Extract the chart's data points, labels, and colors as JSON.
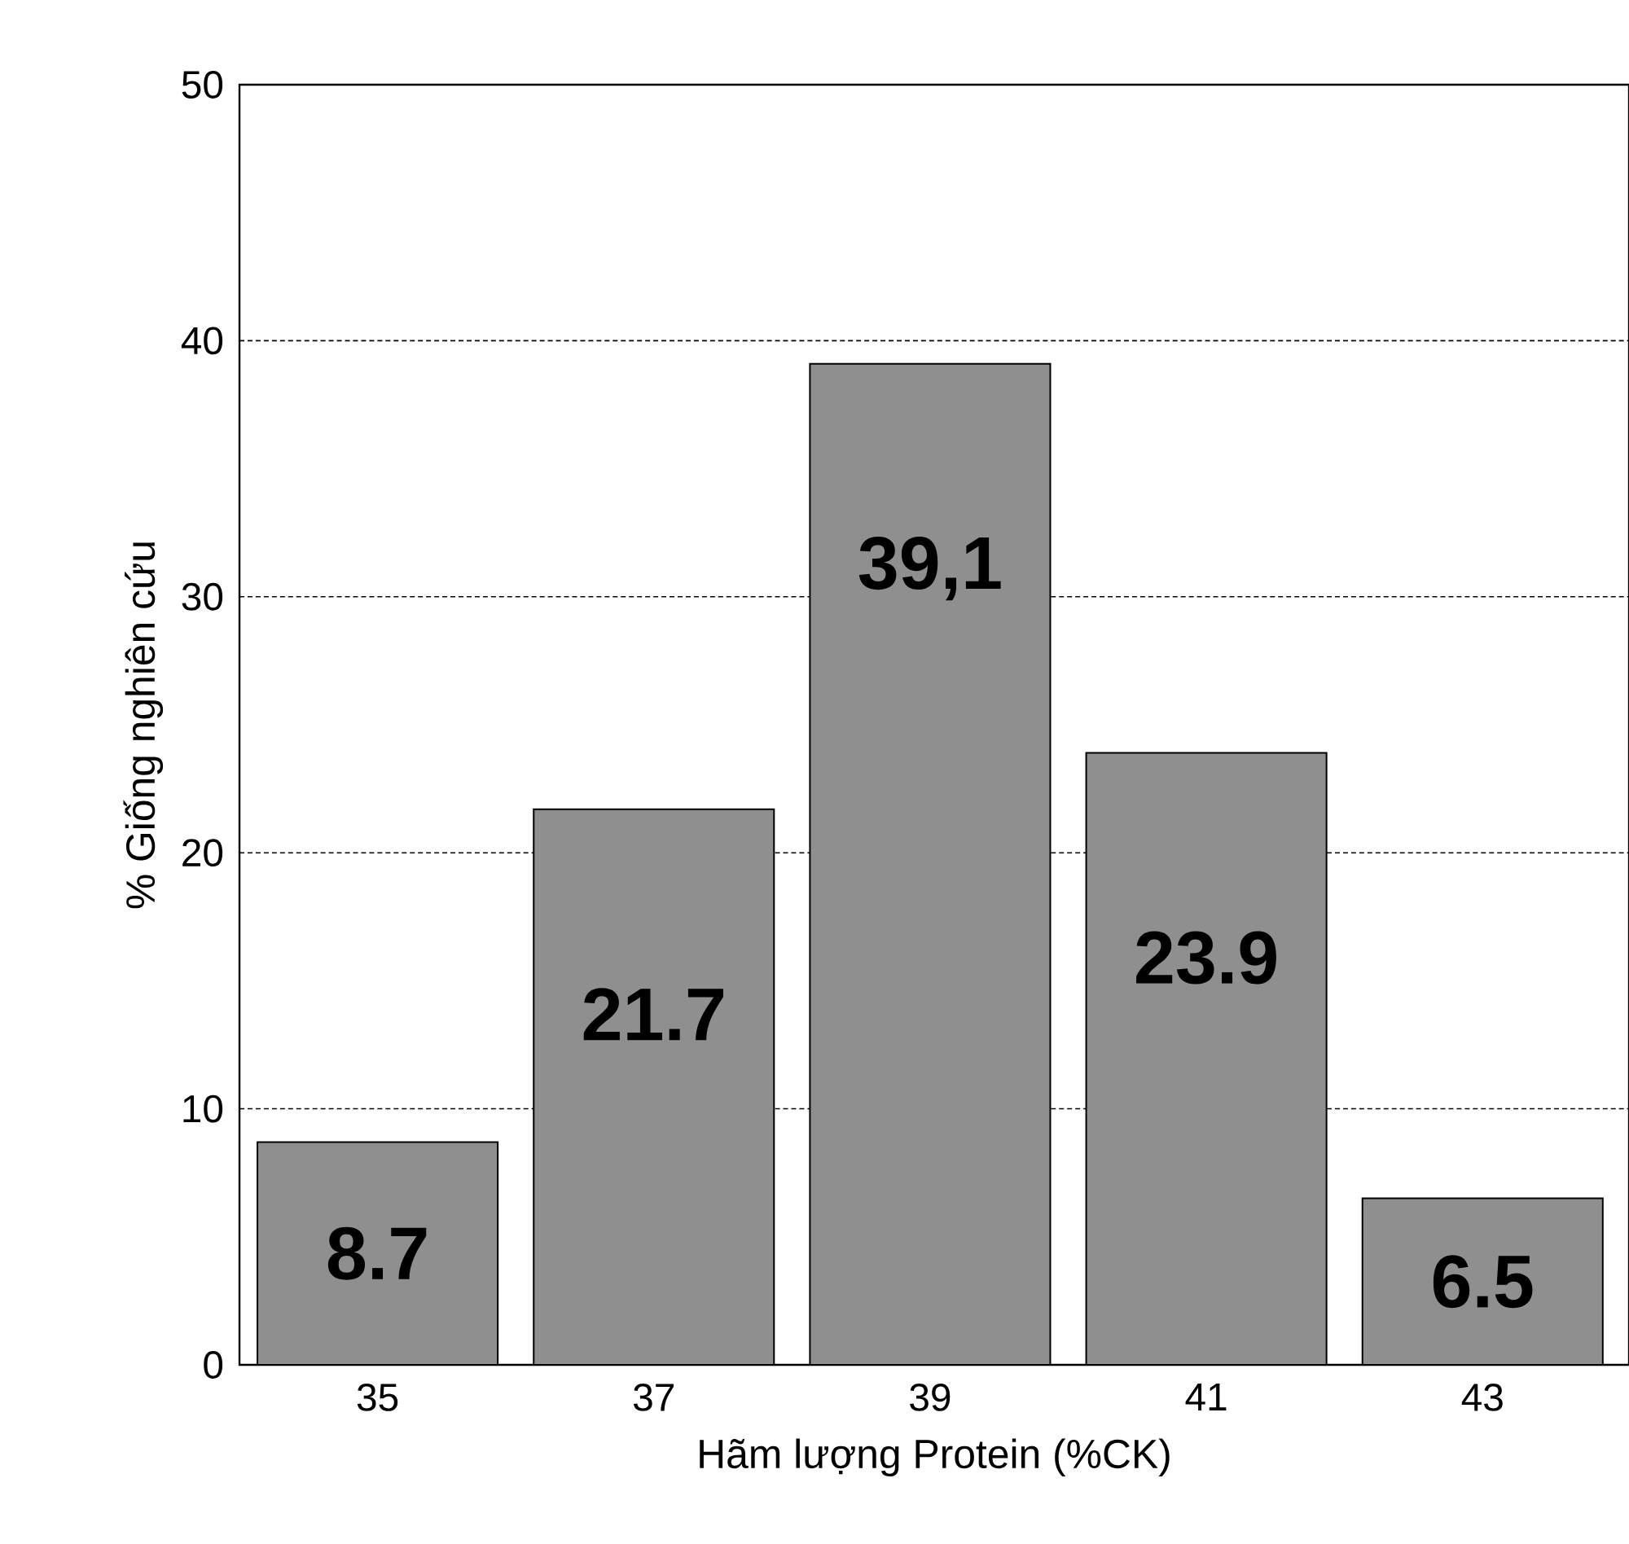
{
  "chart_data": {
    "type": "bar",
    "xlabel": "Hãm lượng Protein (%CK)",
    "ylabel": "% Giống nghiên cứu",
    "categories": [
      "35",
      "37",
      "39",
      "41",
      "43"
    ],
    "values": [
      8.7,
      21.7,
      39.1,
      23.9,
      6.5
    ],
    "value_labels": [
      "8.7",
      "21.7",
      "39,1",
      "23.9",
      "6.5"
    ],
    "color": "#8f8f8f",
    "ylim": [
      0,
      50
    ],
    "yticks": [
      0,
      10,
      20,
      30,
      40,
      50
    ],
    "grid": "y"
  }
}
